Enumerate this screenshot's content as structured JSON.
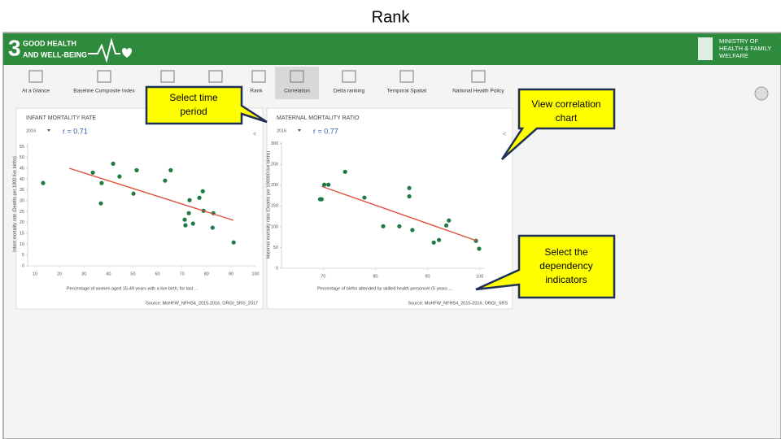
{
  "slide_title": "Rank",
  "header": {
    "goal_number": "3",
    "goal_text": [
      "GOOD HEALTH",
      "AND WELL-BEING"
    ],
    "ministry": [
      "MINISTRY OF",
      "HEALTH & FAMILY",
      "WELFARE"
    ]
  },
  "toolbar": [
    "At a Glance",
    "Baseline Composite Index",
    "Rank",
    "Correlation",
    "Delta ranking",
    "Temporal Spatial",
    "National Health Policy"
  ],
  "callouts": [
    [
      "Select time",
      "period"
    ],
    [
      "View correlation",
      "chart"
    ],
    [
      "Select the",
      "dependency",
      "indicators"
    ]
  ],
  "chart_data": [
    {
      "type": "scatter",
      "title": "INFANT MORTALITY RATE",
      "period": "2016",
      "correlation": "r = 0.71",
      "x_label": "Percentage of women aged 15-49 years with a live birth, for last ...",
      "y_label": "Infant mortality rate (Deaths per 1000 live births)",
      "source": "Source: MoHFW_NFHS4_2015-2016, ORGI_SRS_2017",
      "color": "#1f7a45",
      "trend_color": "#e0503a",
      "x": [
        13.3,
        33.6,
        37.2,
        36.9,
        41.9,
        44.5,
        50.2,
        51.5,
        63.1,
        65.4,
        73.1,
        71.1,
        71.4,
        72.8,
        74.5,
        77.1,
        78.5,
        78.8,
        82.8,
        82.5,
        91.1
      ],
      "values": [
        38.2,
        43,
        38.2,
        28.8,
        47.1,
        41.2,
        33.3,
        44.1,
        39.3,
        44.1,
        30.3,
        21.3,
        18.7,
        24.3,
        19.5,
        31.4,
        34.4,
        25.4,
        24.3,
        17.6,
        10.8
      ],
      "trendline": {
        "x": [
          24,
          91
        ],
        "values": [
          45,
          21
        ]
      },
      "xlim": [
        7,
        100
      ],
      "xticks": [
        10,
        20,
        30,
        40,
        50,
        60,
        70,
        80,
        90,
        100
      ],
      "ylim": [
        0,
        57
      ],
      "yticks": [
        0,
        5,
        10,
        15,
        20,
        25,
        30,
        35,
        40,
        45,
        50,
        55
      ]
    },
    {
      "type": "scatter",
      "title": "MATERNAL MORTALITY RATIO",
      "period": "2016",
      "correlation": "r = 0.77",
      "x_label": "Percentage of births attended by skilled health personnel (5 years ...",
      "y_label": "Maternal mortality ratio (Deaths per 100000 live births)",
      "source": "Source: MoHFW_NFHS4_2015-2016, ORGI_SRS",
      "color": "#1f7a45",
      "trend_color": "#e0503a",
      "x": [
        69.7,
        69.4,
        70.2,
        71,
        74.2,
        77.9,
        81.5,
        84.6,
        87.1,
        86.5,
        86.5,
        91.2,
        92.2,
        93.6,
        94.1,
        99.3,
        99.9
      ],
      "values": [
        166,
        166,
        201,
        201,
        232,
        170,
        101,
        101,
        92,
        193,
        173,
        62,
        68,
        103,
        115,
        66,
        47
      ],
      "trendline": {
        "x": [
          69.7,
          99.5
        ],
        "values": [
          197,
          66
        ]
      },
      "xlim": [
        62,
        101
      ],
      "xticks": [
        70,
        80,
        90,
        100
      ],
      "ylim": [
        0,
        305
      ],
      "yticks": [
        0,
        50,
        100,
        150,
        200,
        250,
        300
      ]
    }
  ]
}
